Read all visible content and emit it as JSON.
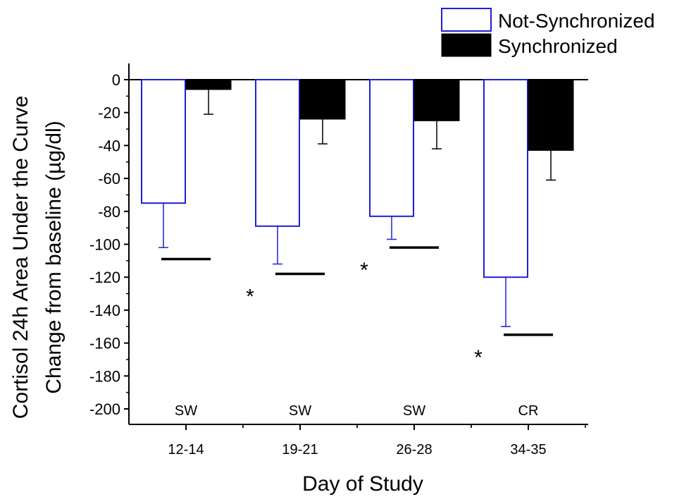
{
  "chart_data": {
    "type": "bar",
    "categories": [
      "12-14",
      "19-21",
      "26-28",
      "34-35"
    ],
    "conditions": [
      "SW",
      "SW",
      "SW",
      "CR"
    ],
    "series": [
      {
        "name": "Not-Synchronized",
        "values": [
          -75,
          -89,
          -83,
          -120
        ],
        "errors": [
          27,
          23,
          14,
          30
        ],
        "color": "#1f1fd6",
        "fill": "none"
      },
      {
        "name": "Synchronized",
        "values": [
          -6,
          -24,
          -25,
          -43
        ],
        "errors": [
          15,
          15,
          17,
          18
        ],
        "color": "#000000",
        "fill": "solid"
      }
    ],
    "significance_bars": [
      -109,
      -118,
      -102,
      -155
    ],
    "significance_markers": [
      "",
      "*",
      "*",
      "*"
    ],
    "xlabel": "Day of Study",
    "ylabel_line1": "Cortisol 24h Area Under the Curve",
    "ylabel_line2": "Change from baseline (µg/dl)",
    "ylim": [
      -210,
      10
    ],
    "yticks": [
      0,
      -20,
      -40,
      -60,
      -80,
      -100,
      -120,
      -140,
      -160,
      -180,
      -200
    ],
    "grid": false,
    "legend_position": "top-right"
  }
}
